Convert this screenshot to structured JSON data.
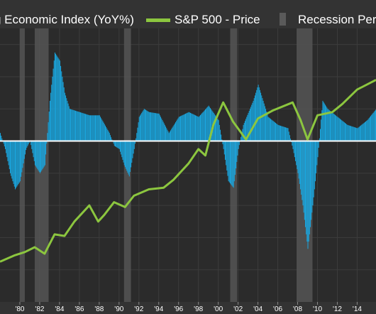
{
  "chart_data": {
    "type": "bar",
    "legend": {
      "placement": "top",
      "entries": [
        {
          "name": "g Economic Index (YoY%)",
          "color": "#1aa7e0",
          "kind": "bar"
        },
        {
          "name": "S&P 500 - Price",
          "color": "#8cc63f",
          "kind": "line"
        },
        {
          "name": "Recession Per",
          "color": "#5a5a5a",
          "kind": "shade"
        }
      ]
    },
    "x_ticks": [
      "'80",
      "'82",
      "'84",
      "'86",
      "'88",
      "'90",
      "'92",
      "'94",
      "'96",
      "'98",
      "'00",
      "'02",
      "'04",
      "'06",
      "'08",
      "'10",
      "'12",
      "'14"
    ],
    "xlim": [
      1978.0,
      2015.9
    ],
    "ylim": [
      -10,
      7
    ],
    "grid": true,
    "recessions": [
      [
        1980.0,
        1980.5
      ],
      [
        1981.5,
        1982.9
      ],
      [
        1990.5,
        1991.2
      ],
      [
        2001.2,
        2001.9
      ],
      [
        2007.9,
        2009.5
      ]
    ],
    "series": [
      {
        "name": "g Economic Index (YoY%)",
        "type": "bar",
        "color": "#1aa7e0",
        "points": [
          [
            1978.0,
            0.5
          ],
          [
            1978.5,
            -0.5
          ],
          [
            1979.0,
            -2.0
          ],
          [
            1979.5,
            -3.0
          ],
          [
            1980.0,
            -2.5
          ],
          [
            1980.6,
            -0.5
          ],
          [
            1981.0,
            0.0
          ],
          [
            1981.5,
            -1.5
          ],
          [
            1982.0,
            -2.0
          ],
          [
            1982.5,
            -1.5
          ],
          [
            1983.0,
            2.5
          ],
          [
            1983.5,
            5.5
          ],
          [
            1984.0,
            5.0
          ],
          [
            1984.5,
            3.0
          ],
          [
            1985.0,
            2.0
          ],
          [
            1986.0,
            1.8
          ],
          [
            1987.0,
            1.6
          ],
          [
            1988.0,
            1.6
          ],
          [
            1989.0,
            0.5
          ],
          [
            1989.5,
            -0.3
          ],
          [
            1990.0,
            -0.5
          ],
          [
            1990.5,
            -1.5
          ],
          [
            1991.0,
            -2.2
          ],
          [
            1991.5,
            -0.5
          ],
          [
            1992.0,
            1.5
          ],
          [
            1992.5,
            2.0
          ],
          [
            1993.0,
            1.8
          ],
          [
            1994.0,
            1.7
          ],
          [
            1995.0,
            0.5
          ],
          [
            1996.0,
            1.5
          ],
          [
            1997.0,
            1.8
          ],
          [
            1998.0,
            1.5
          ],
          [
            1999.0,
            2.2
          ],
          [
            2000.0,
            1.3
          ],
          [
            2000.5,
            -0.5
          ],
          [
            2001.0,
            -2.5
          ],
          [
            2001.5,
            -2.9
          ],
          [
            2002.0,
            -0.5
          ],
          [
            2002.5,
            1.0
          ],
          [
            2003.5,
            2.5
          ],
          [
            2004.0,
            3.5
          ],
          [
            2004.5,
            2.5
          ],
          [
            2005.0,
            1.5
          ],
          [
            2006.0,
            1.0
          ],
          [
            2007.0,
            0.8
          ],
          [
            2007.5,
            -0.5
          ],
          [
            2008.0,
            -2.0
          ],
          [
            2008.5,
            -4.0
          ],
          [
            2009.0,
            -6.7
          ],
          [
            2009.5,
            -4.0
          ],
          [
            2010.0,
            -1.0
          ],
          [
            2010.5,
            2.5
          ],
          [
            2011.0,
            2.0
          ],
          [
            2012.0,
            1.5
          ],
          [
            2013.0,
            1.0
          ],
          [
            2014.0,
            0.8
          ],
          [
            2015.0,
            1.3
          ],
          [
            2015.9,
            2.0
          ]
        ]
      },
      {
        "name": "S&P 500 - Price",
        "type": "line",
        "color": "#8cc63f",
        "points": [
          [
            1978.0,
            -7.5
          ],
          [
            1979.5,
            -7.1
          ],
          [
            1980.5,
            -6.9
          ],
          [
            1981.5,
            -6.6
          ],
          [
            1982.5,
            -7.0
          ],
          [
            1983.5,
            -5.8
          ],
          [
            1984.5,
            -5.9
          ],
          [
            1985.5,
            -5.0
          ],
          [
            1987.0,
            -4.0
          ],
          [
            1987.9,
            -5.0
          ],
          [
            1988.5,
            -4.6
          ],
          [
            1989.5,
            -3.8
          ],
          [
            1990.6,
            -4.1
          ],
          [
            1991.5,
            -3.4
          ],
          [
            1993.0,
            -3.0
          ],
          [
            1994.5,
            -2.9
          ],
          [
            1995.5,
            -2.4
          ],
          [
            1997.0,
            -1.4
          ],
          [
            1998.0,
            -0.5
          ],
          [
            1998.7,
            -0.9
          ],
          [
            1999.5,
            1.0
          ],
          [
            2000.5,
            2.4
          ],
          [
            2001.5,
            1.2
          ],
          [
            2002.8,
            0.1
          ],
          [
            2004.0,
            1.4
          ],
          [
            2005.5,
            1.9
          ],
          [
            2007.5,
            2.4
          ],
          [
            2008.3,
            1.3
          ],
          [
            2009.0,
            0.1
          ],
          [
            2010.0,
            1.6
          ],
          [
            2011.5,
            1.8
          ],
          [
            2012.5,
            2.3
          ],
          [
            2014.0,
            3.2
          ],
          [
            2015.9,
            3.8
          ]
        ]
      }
    ]
  }
}
